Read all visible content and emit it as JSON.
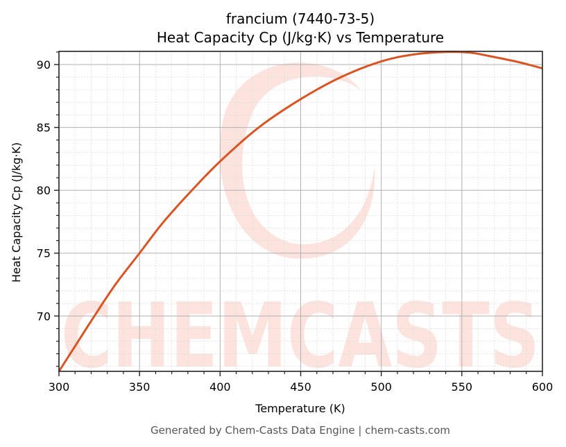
{
  "chart_data": {
    "type": "line",
    "title": "francium (7440-73-5)",
    "subtitle": "Heat Capacity Cp (J/kg·K) vs Temperature",
    "xlabel": "Temperature (K)",
    "ylabel": "Heat Capacity Cp (J/kg·K)",
    "xlim": [
      300,
      600
    ],
    "ylim": [
      65.6,
      91.05
    ],
    "xticks": [
      300,
      350,
      400,
      450,
      500,
      550,
      600
    ],
    "yticks": [
      70,
      75,
      80,
      85,
      90
    ],
    "x_minor_step": 10,
    "y_minor_step": 1,
    "grid": true,
    "legend": null,
    "series": [
      {
        "name": "Cp",
        "color": "#d95423",
        "x": [
          300,
          310,
          322,
          335,
          350,
          365,
          382.5,
          400,
          424,
          450,
          475,
          500,
          520,
          540,
          555,
          570,
          585,
          600
        ],
        "y": [
          65.6,
          67.6,
          70.0,
          72.5,
          75.0,
          77.5,
          80.0,
          82.3,
          85.0,
          87.25,
          89.0,
          90.25,
          90.8,
          91.0,
          90.95,
          90.6,
          90.2,
          89.7
        ]
      }
    ]
  },
  "watermark": {
    "text": "CHEMCASTS",
    "color": "#fde3de"
  },
  "credit": "Generated by Chem-Casts Data Engine | chem-casts.com",
  "colors": {
    "line": "#d95423",
    "grid_major": "#b0b0b0",
    "grid_minor": "#dddddd",
    "axis": "#222222",
    "credit": "#555555"
  }
}
